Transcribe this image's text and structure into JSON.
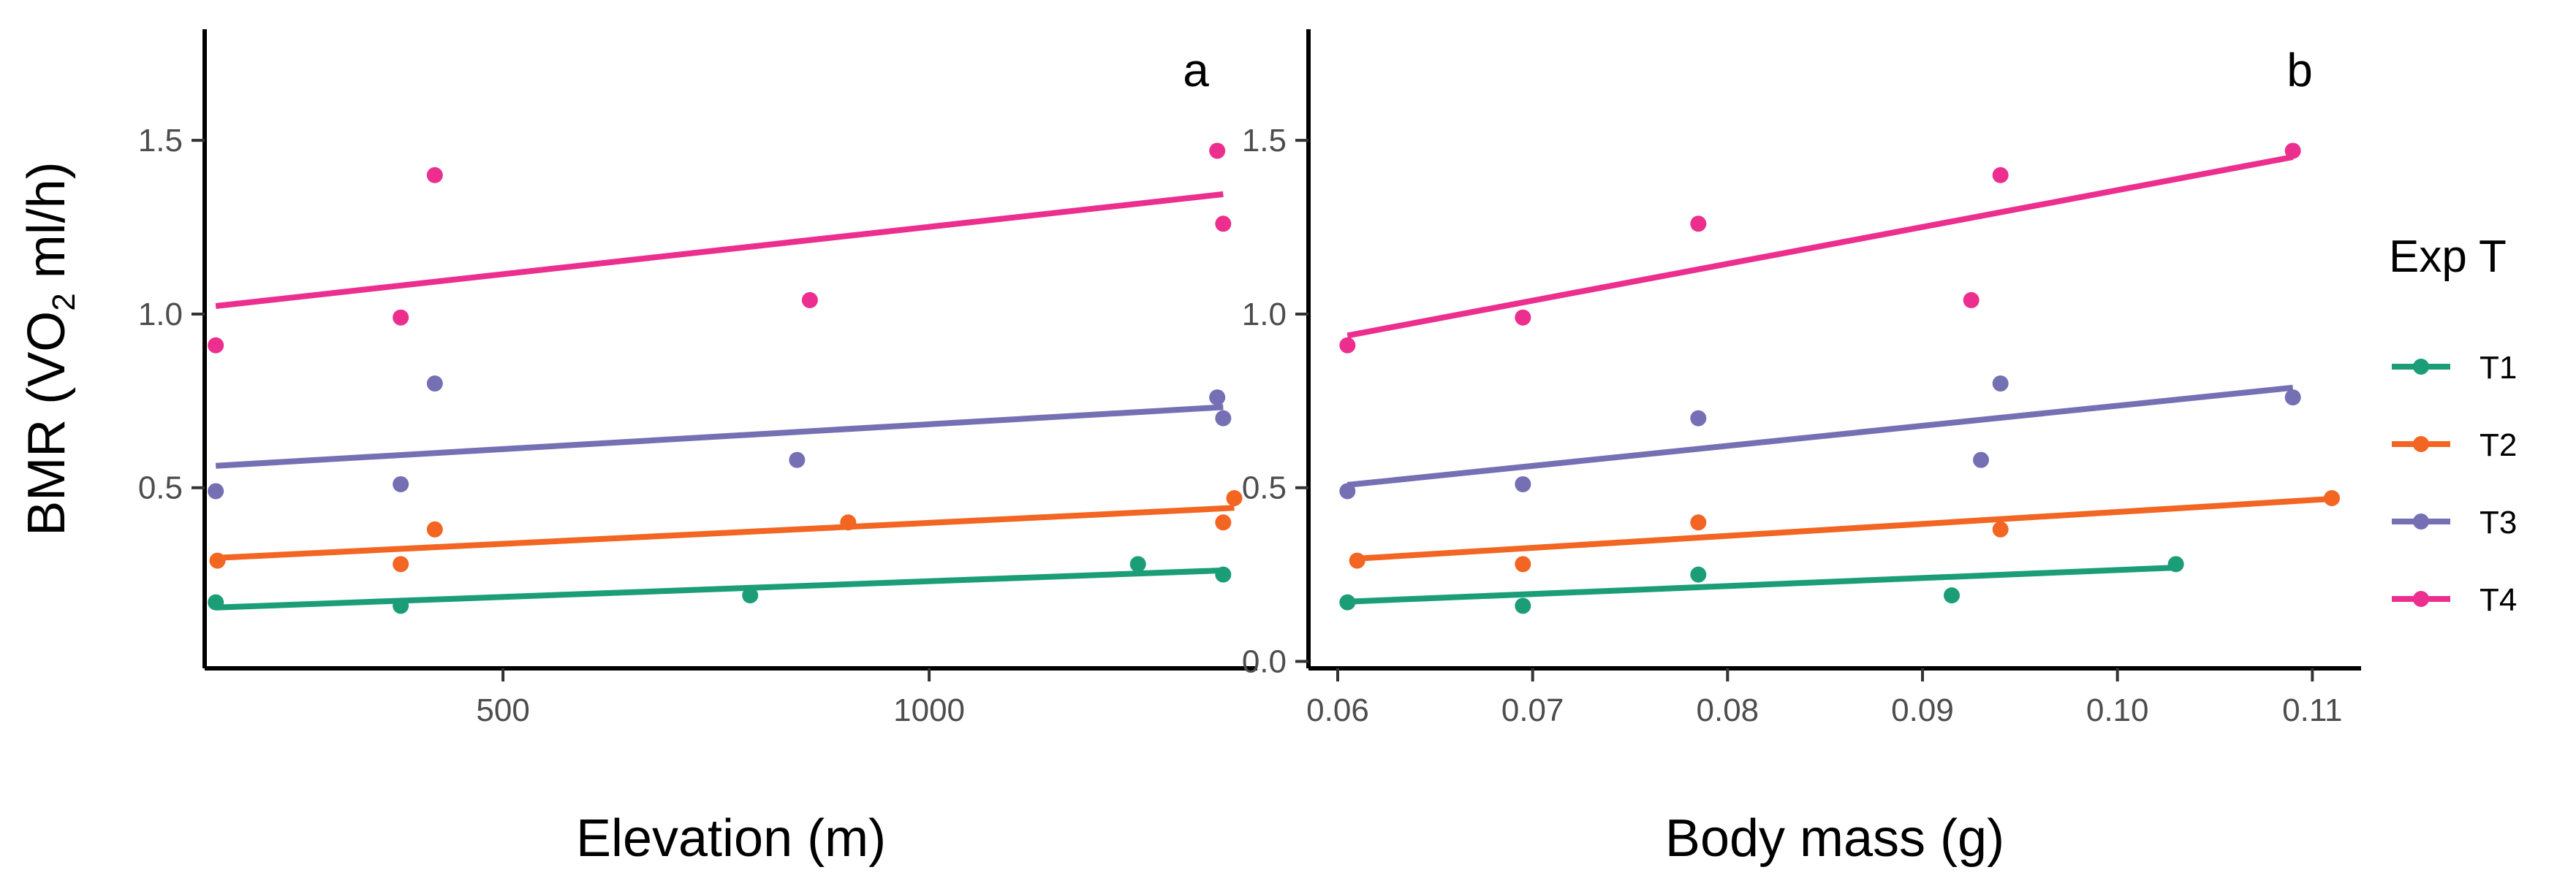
{
  "colors": {
    "T1": "#1b9e77",
    "T2": "#f26522",
    "T3": "#7570b3",
    "T4": "#ec2f8f"
  },
  "y_title": {
    "prefix": "BMR (VO",
    "subscript": "2",
    "suffix": " ml/h)"
  },
  "legend": {
    "title": "Exp T",
    "position": "right"
  },
  "chart_data": [
    {
      "type": "scatter",
      "panel_label": "a",
      "xlabel": "Elevation (m)",
      "ylabel": "BMR (VO2 ml/h)",
      "xlim": [
        150,
        1385
      ],
      "ylim": [
        -0.02,
        1.82
      ],
      "x_ticks": [
        500,
        1000
      ],
      "y_ticks": [
        0.5,
        1.0,
        1.5
      ],
      "y_tick_labels": [
        "0.5",
        "1.0",
        "1.5"
      ],
      "grid": false,
      "series": [
        {
          "name": "T1",
          "points": [
            [
              163,
              0.17
            ],
            [
              380,
              0.16
            ],
            [
              790,
              0.19
            ],
            [
              1245,
              0.28
            ],
            [
              1345,
              0.25
            ]
          ],
          "fit": [
            [
              163,
              0.155
            ],
            [
              1345,
              0.262
            ]
          ]
        },
        {
          "name": "T2",
          "points": [
            [
              165,
              0.29
            ],
            [
              380,
              0.28
            ],
            [
              420,
              0.38
            ],
            [
              905,
              0.4
            ],
            [
              1345,
              0.4
            ],
            [
              1358,
              0.47
            ]
          ],
          "fit": [
            [
              165,
              0.298
            ],
            [
              1358,
              0.442
            ]
          ]
        },
        {
          "name": "T3",
          "points": [
            [
              163,
              0.49
            ],
            [
              380,
              0.51
            ],
            [
              420,
              0.8
            ],
            [
              845,
              0.58
            ],
            [
              1338,
              0.76
            ],
            [
              1345,
              0.7
            ]
          ],
          "fit": [
            [
              163,
              0.563
            ],
            [
              1345,
              0.732
            ]
          ]
        },
        {
          "name": "T4",
          "points": [
            [
              163,
              0.91
            ],
            [
              380,
              0.99
            ],
            [
              420,
              1.4
            ],
            [
              860,
              1.04
            ],
            [
              1338,
              1.47
            ],
            [
              1345,
              1.26
            ]
          ],
          "fit": [
            [
              163,
              1.023
            ],
            [
              1345,
              1.345
            ]
          ]
        }
      ]
    },
    {
      "type": "scatter",
      "panel_label": "b",
      "xlabel": "Body mass (g)",
      "ylabel": "",
      "xlim": [
        0.0585,
        0.1125
      ],
      "ylim": [
        -0.02,
        1.82
      ],
      "x_ticks": [
        0.06,
        0.07,
        0.08,
        0.09,
        0.1,
        0.11
      ],
      "x_tick_labels": [
        "0.06",
        "0.07",
        "0.08",
        "0.09",
        "0.10",
        "0.11"
      ],
      "y_ticks": [
        0.0,
        0.5,
        1.0,
        1.5
      ],
      "y_tick_labels": [
        "0.0",
        "0.5",
        "1.0",
        "1.5"
      ],
      "grid": false,
      "series": [
        {
          "name": "T1",
          "points": [
            [
              0.0605,
              0.17
            ],
            [
              0.0695,
              0.16
            ],
            [
              0.0785,
              0.25
            ],
            [
              0.0915,
              0.19
            ],
            [
              0.103,
              0.28
            ]
          ],
          "fit": [
            [
              0.0605,
              0.172
            ],
            [
              0.103,
              0.27
            ]
          ]
        },
        {
          "name": "T2",
          "points": [
            [
              0.061,
              0.29
            ],
            [
              0.0695,
              0.28
            ],
            [
              0.0785,
              0.4
            ],
            [
              0.094,
              0.38
            ],
            [
              0.111,
              0.47
            ]
          ],
          "fit": [
            [
              0.061,
              0.296
            ],
            [
              0.111,
              0.468
            ]
          ]
        },
        {
          "name": "T3",
          "points": [
            [
              0.0605,
              0.49
            ],
            [
              0.0695,
              0.51
            ],
            [
              0.0785,
              0.7
            ],
            [
              0.093,
              0.58
            ],
            [
              0.094,
              0.8
            ],
            [
              0.109,
              0.76
            ]
          ],
          "fit": [
            [
              0.0605,
              0.508
            ],
            [
              0.109,
              0.788
            ]
          ]
        },
        {
          "name": "T4",
          "points": [
            [
              0.0605,
              0.91
            ],
            [
              0.0695,
              0.99
            ],
            [
              0.0785,
              1.26
            ],
            [
              0.0925,
              1.04
            ],
            [
              0.094,
              1.4
            ],
            [
              0.109,
              1.47
            ]
          ],
          "fit": [
            [
              0.0605,
              0.938
            ],
            [
              0.109,
              1.452
            ]
          ]
        }
      ]
    }
  ]
}
